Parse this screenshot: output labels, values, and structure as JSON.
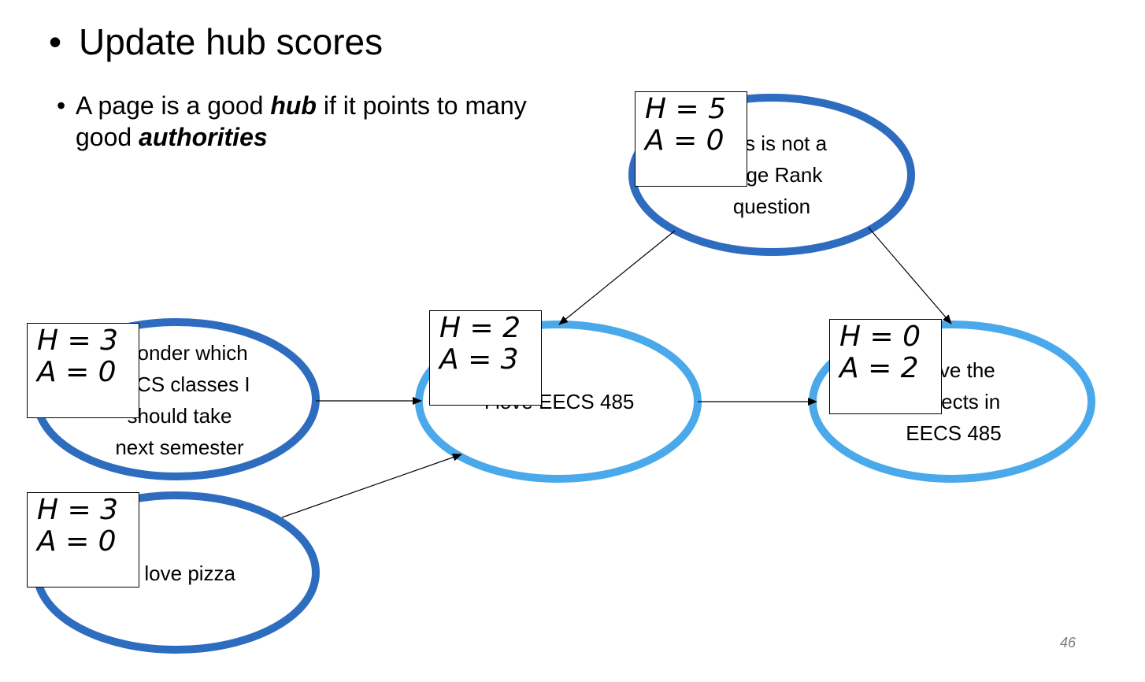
{
  "slide": {
    "title": "Update hub scores",
    "bullet": {
      "pre": "A page is a good ",
      "hub": "hub",
      "mid": " if it points to many good ",
      "auth": "authorities"
    },
    "page_number": "46"
  },
  "colors": {
    "dark_node": "#2e6cbf",
    "light_node": "#4aa9ea",
    "edge": "#000000"
  },
  "nodes": [
    {
      "id": "pagerank",
      "text": [
        "This is not a",
        "Page Rank",
        "question"
      ],
      "H": "H = 5",
      "A": "A = 0"
    },
    {
      "id": "wonder",
      "text": [
        "I wonder which",
        "EECS classes I",
        "should take",
        "next semester"
      ],
      "H": "H = 3",
      "A": "A = 0"
    },
    {
      "id": "eecs485",
      "text": [
        "I love EECS 485"
      ],
      "H": "H = 2",
      "A": "A = 3"
    },
    {
      "id": "projects",
      "text": [
        "I love the",
        "projects in",
        "EECS 485"
      ],
      "H": "H = 0",
      "A": "A = 2"
    },
    {
      "id": "pizza",
      "text": [
        "I love pizza"
      ],
      "H": "H = 3",
      "A": "A = 0"
    }
  ],
  "edges": [
    {
      "from": "pagerank",
      "to": "eecs485"
    },
    {
      "from": "pagerank",
      "to": "projects"
    },
    {
      "from": "wonder",
      "to": "eecs485"
    },
    {
      "from": "pizza",
      "to": "eecs485"
    },
    {
      "from": "eecs485",
      "to": "projects"
    }
  ]
}
